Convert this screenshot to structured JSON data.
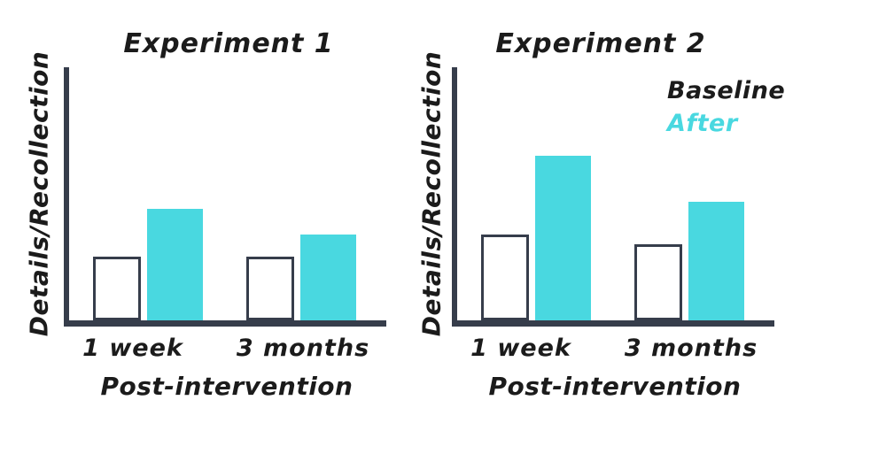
{
  "figure": {
    "description": "Two hand-drawn style grouped bar charts comparing memory recollection before and after an intervention",
    "background": "#ffffff"
  },
  "colors": {
    "ink": "#1b1b1b",
    "axis": "#363d4b",
    "baseline_fill": "#ffffff",
    "baseline_outline": "#363d4b",
    "after_fill": "#49d8e0"
  },
  "chart_data": [
    {
      "type": "bar",
      "title": "Experiment 1",
      "xlabel": "Post-intervention",
      "ylabel": "Details/Recollection",
      "categories": [
        "1 week",
        "3 months"
      ],
      "series": [
        {
          "name": "Baseline",
          "values": [
            25,
            25
          ],
          "style": "white bar with dark outline"
        },
        {
          "name": "After",
          "values": [
            44,
            34
          ],
          "style": "solid cyan bar"
        }
      ],
      "value_units": "relative height, % of y-axis (no numeric scale shown)",
      "ylim": [
        0,
        100
      ],
      "grid": false,
      "legend_visible": false
    },
    {
      "type": "bar",
      "title": "Experiment 2",
      "xlabel": "Post-intervention",
      "ylabel": "Details/Recollection",
      "categories": [
        "1 week",
        "3 months"
      ],
      "series": [
        {
          "name": "Baseline",
          "values": [
            34,
            30
          ],
          "style": "white bar with dark outline"
        },
        {
          "name": "After",
          "values": [
            65,
            47
          ],
          "style": "solid cyan bar"
        }
      ],
      "value_units": "relative height, % of y-axis (no numeric scale shown)",
      "ylim": [
        0,
        100
      ],
      "grid": false,
      "legend_visible": true,
      "legend": {
        "position": "upper-right",
        "entries": [
          {
            "label": "Baseline",
            "color": "#1b1b1b"
          },
          {
            "label": "After",
            "color": "#49d8e0"
          }
        ]
      }
    }
  ]
}
